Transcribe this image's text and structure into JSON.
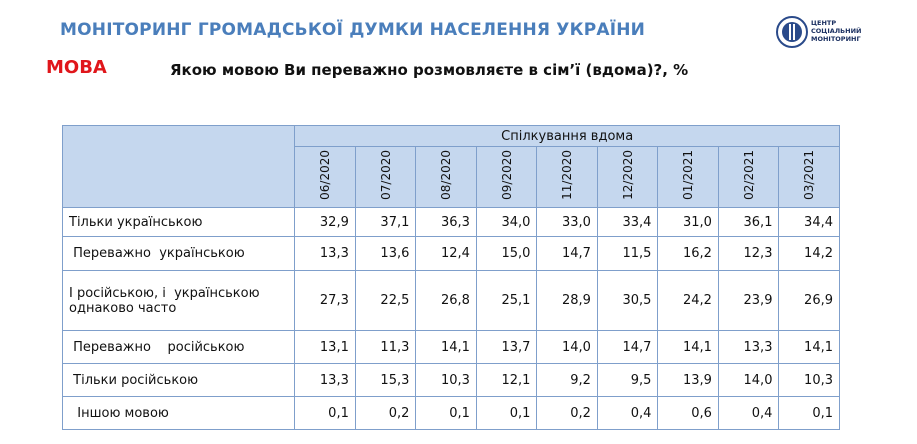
{
  "header": {
    "title": "МОНІТОРИНГ ГРОМАДСЬКОЇ ДУМКИ НАСЕЛЕННЯ УКРАЇНИ",
    "topic": "МОВА",
    "question": "Якою мовою Ви переважно розмовляєте в сім’ї (вдома)?,  %",
    "logo": [
      "ЦЕНТР",
      "СОЦІАЛЬНИЙ",
      "МОНІТОРИНГ"
    ]
  },
  "table": {
    "group": "Спілкування вдома",
    "columns": [
      "06/2020",
      "07/2020",
      "08/2020",
      "09/2020",
      "11/2020",
      "12/2020",
      "01/2021",
      "02/2021",
      "03/2021"
    ],
    "rows": [
      {
        "label": "Тільки українською",
        "values": [
          "32,9",
          "37,1",
          "36,3",
          "34,0",
          "33,0",
          "33,4",
          "31,0",
          "36,1",
          "34,4"
        ]
      },
      {
        "label": " Переважно  українською",
        "values": [
          "13,3",
          "13,6",
          "12,4",
          "15,0",
          "14,7",
          "11,5",
          "16,2",
          "12,3",
          "14,2"
        ]
      },
      {
        "label": "І російською, і  українською однаково часто",
        "values": [
          "27,3",
          "22,5",
          "26,8",
          "25,1",
          "28,9",
          "30,5",
          "24,2",
          "23,9",
          "26,9"
        ]
      },
      {
        "label": " Переважно    російською",
        "values": [
          "13,1",
          "11,3",
          "14,1",
          "13,7",
          "14,0",
          "14,7",
          "14,1",
          "13,3",
          "14,1"
        ]
      },
      {
        "label": " Тільки російською",
        "values": [
          "13,3",
          "15,3",
          "10,3",
          "12,1",
          "9,2",
          "9,5",
          "13,9",
          "14,0",
          "10,3"
        ]
      },
      {
        "label": "  Іншою мовою",
        "values": [
          "0,1",
          "0,2",
          "0,1",
          "0,1",
          "0,2",
          "0,4",
          "0,6",
          "0,4",
          "0,1"
        ]
      }
    ]
  }
}
